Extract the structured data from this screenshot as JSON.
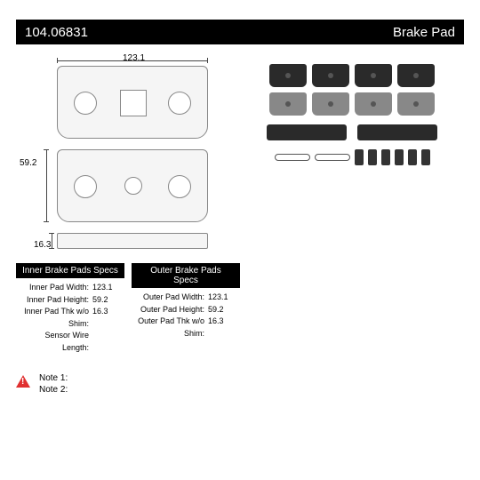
{
  "header": {
    "part_number": "104.06831",
    "product_type": "Brake Pad"
  },
  "dimensions": {
    "width": "123.1",
    "height": "59.2",
    "thickness": "16.3"
  },
  "specs": {
    "inner": {
      "title": "Inner Brake Pads Specs",
      "rows": [
        {
          "label": "Inner Pad Width:",
          "value": "123.1"
        },
        {
          "label": "Inner Pad Height:",
          "value": "59.2"
        },
        {
          "label": "Inner Pad Thk w/o Shim:",
          "value": "16.3"
        },
        {
          "label": "Sensor Wire Length:",
          "value": ""
        }
      ]
    },
    "outer": {
      "title": "Outer Brake Pads Specs",
      "rows": [
        {
          "label": "Outer Pad Width:",
          "value": "123.1"
        },
        {
          "label": "Outer Pad Height:",
          "value": "59.2"
        },
        {
          "label": "Outer Pad Thk w/o Shim:",
          "value": "16.3"
        }
      ]
    }
  },
  "notes": {
    "note1": "Note 1:",
    "note2": "Note 2:"
  },
  "colors": {
    "header_bg": "#000000",
    "header_fg": "#ffffff",
    "warn": "#e03030",
    "pad_dark": "#2a2a2a"
  }
}
